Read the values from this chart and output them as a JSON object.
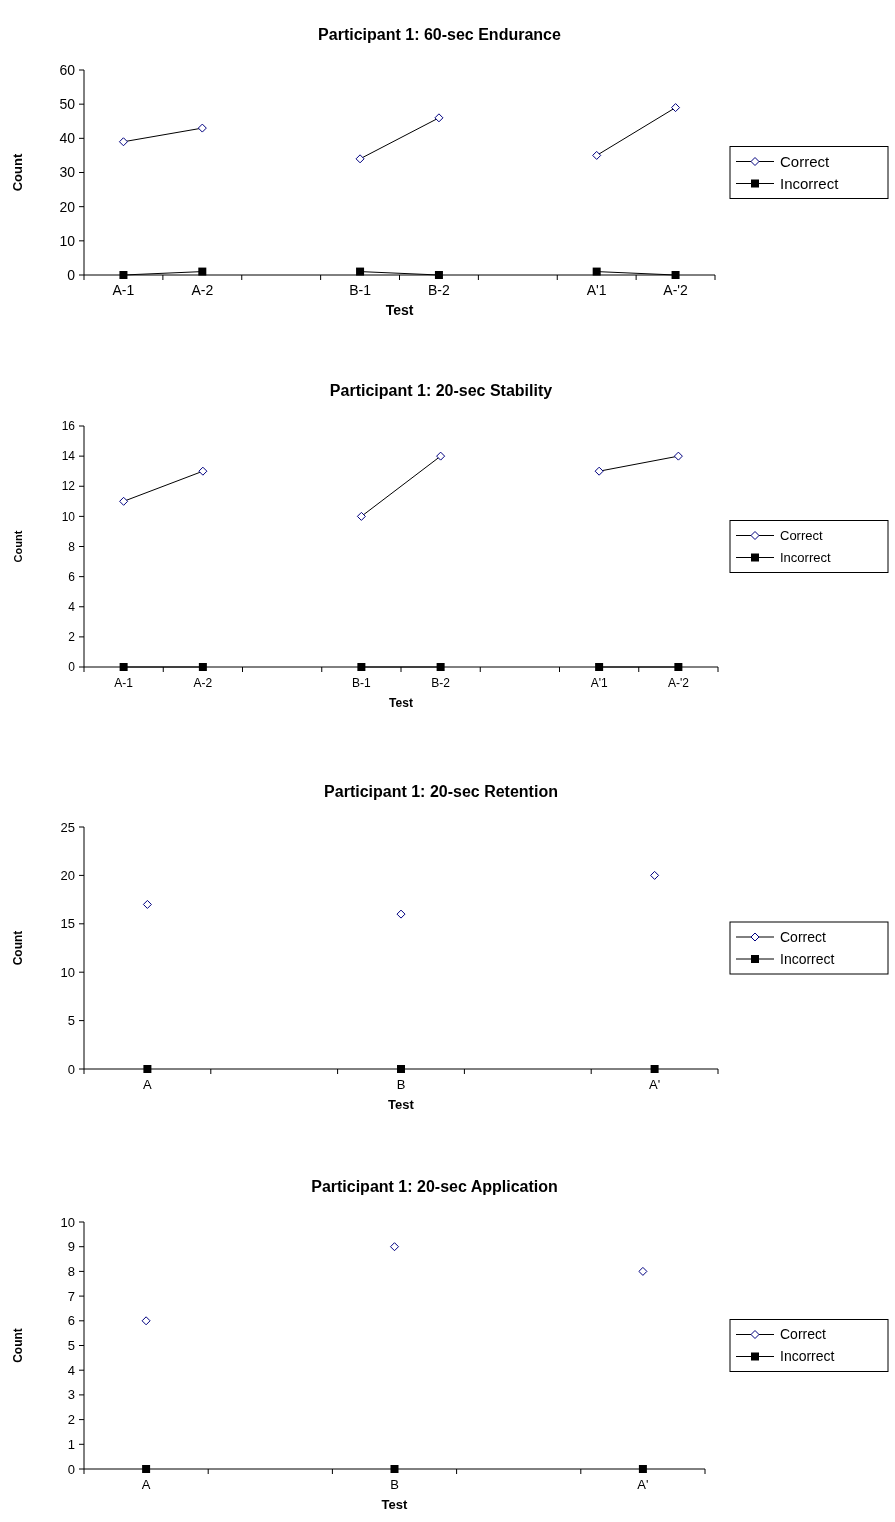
{
  "chart_data": [
    {
      "type": "line",
      "title": "Participant 1: 60-sec Endurance",
      "xlabel": "Test",
      "ylabel": "Count",
      "categories": [
        "A-1",
        "A-2",
        null,
        "B-1",
        "B-2",
        null,
        "A'1",
        "A-'2"
      ],
      "ylim": [
        0,
        60
      ],
      "yticks": [
        0,
        10,
        20,
        30,
        40,
        50,
        60
      ],
      "legend": "right",
      "grid": false,
      "series": [
        {
          "name": "Correct",
          "color": "#000080",
          "marker": "diamond",
          "values": [
            39,
            43,
            null,
            34,
            46,
            null,
            35,
            49
          ]
        },
        {
          "name": "Incorrect",
          "color": "#000000",
          "marker": "square",
          "values": [
            0,
            1,
            null,
            1,
            0,
            null,
            1,
            0
          ]
        }
      ]
    },
    {
      "type": "line",
      "title": "Participant 1: 20-sec Stability",
      "xlabel": "Test",
      "ylabel": "Count",
      "categories": [
        "A-1",
        "A-2",
        null,
        "B-1",
        "B-2",
        null,
        "A'1",
        "A-'2"
      ],
      "ylim": [
        0,
        16
      ],
      "yticks": [
        0,
        2,
        4,
        6,
        8,
        10,
        12,
        14,
        16
      ],
      "legend": "right",
      "grid": false,
      "series": [
        {
          "name": "Correct",
          "color": "#000080",
          "marker": "diamond",
          "values": [
            11,
            13,
            null,
            10,
            14,
            null,
            13,
            14
          ]
        },
        {
          "name": "Incorrect",
          "color": "#000000",
          "marker": "square",
          "values": [
            0,
            0,
            null,
            0,
            0,
            null,
            0,
            0
          ]
        }
      ]
    },
    {
      "type": "line",
      "title": "Participant 1: 20-sec Retention",
      "xlabel": "Test",
      "ylabel": "Count",
      "categories": [
        "A",
        null,
        "B",
        null,
        "A'"
      ],
      "ylim": [
        0,
        25
      ],
      "yticks": [
        0,
        5,
        10,
        15,
        20,
        25
      ],
      "legend": "right",
      "grid": false,
      "series": [
        {
          "name": "Correct",
          "type": "scatter",
          "color": "#000080",
          "marker": "diamond",
          "values": [
            17,
            null,
            16,
            null,
            20
          ]
        },
        {
          "name": "Incorrect",
          "type": "scatter",
          "color": "#000000",
          "marker": "square",
          "values": [
            0,
            null,
            0,
            null,
            0
          ]
        }
      ]
    },
    {
      "type": "line",
      "title": "Participant 1: 20-sec Application",
      "xlabel": "Test",
      "ylabel": "Count",
      "categories": [
        "A",
        null,
        "B",
        null,
        "A'"
      ],
      "ylim": [
        0,
        10
      ],
      "yticks": [
        0,
        1,
        2,
        3,
        4,
        5,
        6,
        7,
        8,
        9,
        10
      ],
      "legend": "right",
      "grid": false,
      "series": [
        {
          "name": "Correct",
          "type": "scatter",
          "color": "#000080",
          "marker": "diamond",
          "values": [
            6,
            null,
            9,
            null,
            8
          ]
        },
        {
          "name": "Incorrect",
          "type": "scatter",
          "color": "#000000",
          "marker": "square",
          "values": [
            0,
            null,
            0,
            null,
            0
          ]
        }
      ]
    }
  ]
}
